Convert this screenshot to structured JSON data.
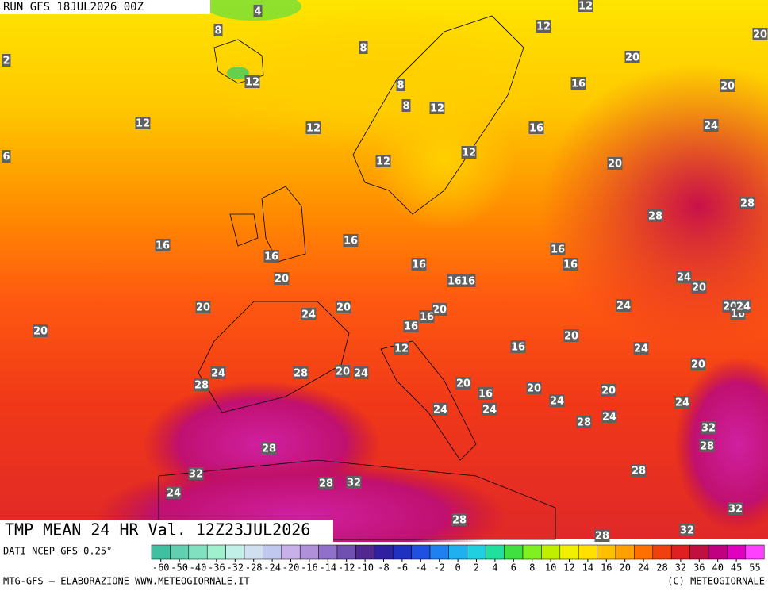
{
  "header": {
    "title": "RUN GFS 18JUL2026 00Z"
  },
  "footer": {
    "title": "TMP MEAN 24 HR Val. 12Z23JUL2026",
    "source": "DATI NCEP GFS 0.25°",
    "credit": "MTG-GFS — ELABORAZIONE WWW.METEOGIORNALE.IT",
    "copyright": "(C) METEOGIORNALE"
  },
  "contour_labels": [
    4,
    8,
    8,
    2,
    12,
    8,
    8,
    12,
    12,
    12,
    16,
    12,
    12,
    6,
    12,
    12,
    20,
    16,
    20,
    24,
    20,
    28,
    28,
    16,
    16,
    16,
    16,
    16,
    16,
    16,
    16,
    20,
    24,
    20,
    20,
    24,
    20,
    20,
    16,
    24,
    20,
    16,
    20,
    16,
    12,
    24,
    20,
    24,
    28,
    20,
    24,
    28,
    20,
    16,
    20,
    20,
    24,
    24,
    24,
    24,
    28,
    24,
    32,
    28,
    28,
    32,
    28,
    28,
    32,
    24,
    32,
    28,
    28,
    32,
    20,
    16,
    24,
    20
  ],
  "colorbar": {
    "ticks": [
      -60,
      -50,
      -40,
      -36,
      -32,
      -28,
      -24,
      -20,
      -16,
      -14,
      -12,
      -10,
      -8,
      -6,
      -4,
      -2,
      0,
      2,
      4,
      6,
      8,
      10,
      12,
      14,
      16,
      20,
      24,
      28,
      32,
      36,
      40,
      45,
      55
    ],
    "colors": [
      "#40c0a0",
      "#60d0b0",
      "#80e0c0",
      "#a0f0d0",
      "#c0f0e8",
      "#d0e0f0",
      "#c0c8f0",
      "#c8b0e8",
      "#b090d8",
      "#9070c8",
      "#7050b0",
      "#502890",
      "#3020a0",
      "#2030c0",
      "#2050e0",
      "#2080f0",
      "#20b0f0",
      "#20d0e0",
      "#20e0a0",
      "#40e040",
      "#80f020",
      "#c0f000",
      "#f0f000",
      "#ffe000",
      "#ffc000",
      "#ffa000",
      "#ff7000",
      "#f04010",
      "#e02020",
      "#c01040",
      "#c00080",
      "#e000c0",
      "#ff40ff"
    ]
  }
}
